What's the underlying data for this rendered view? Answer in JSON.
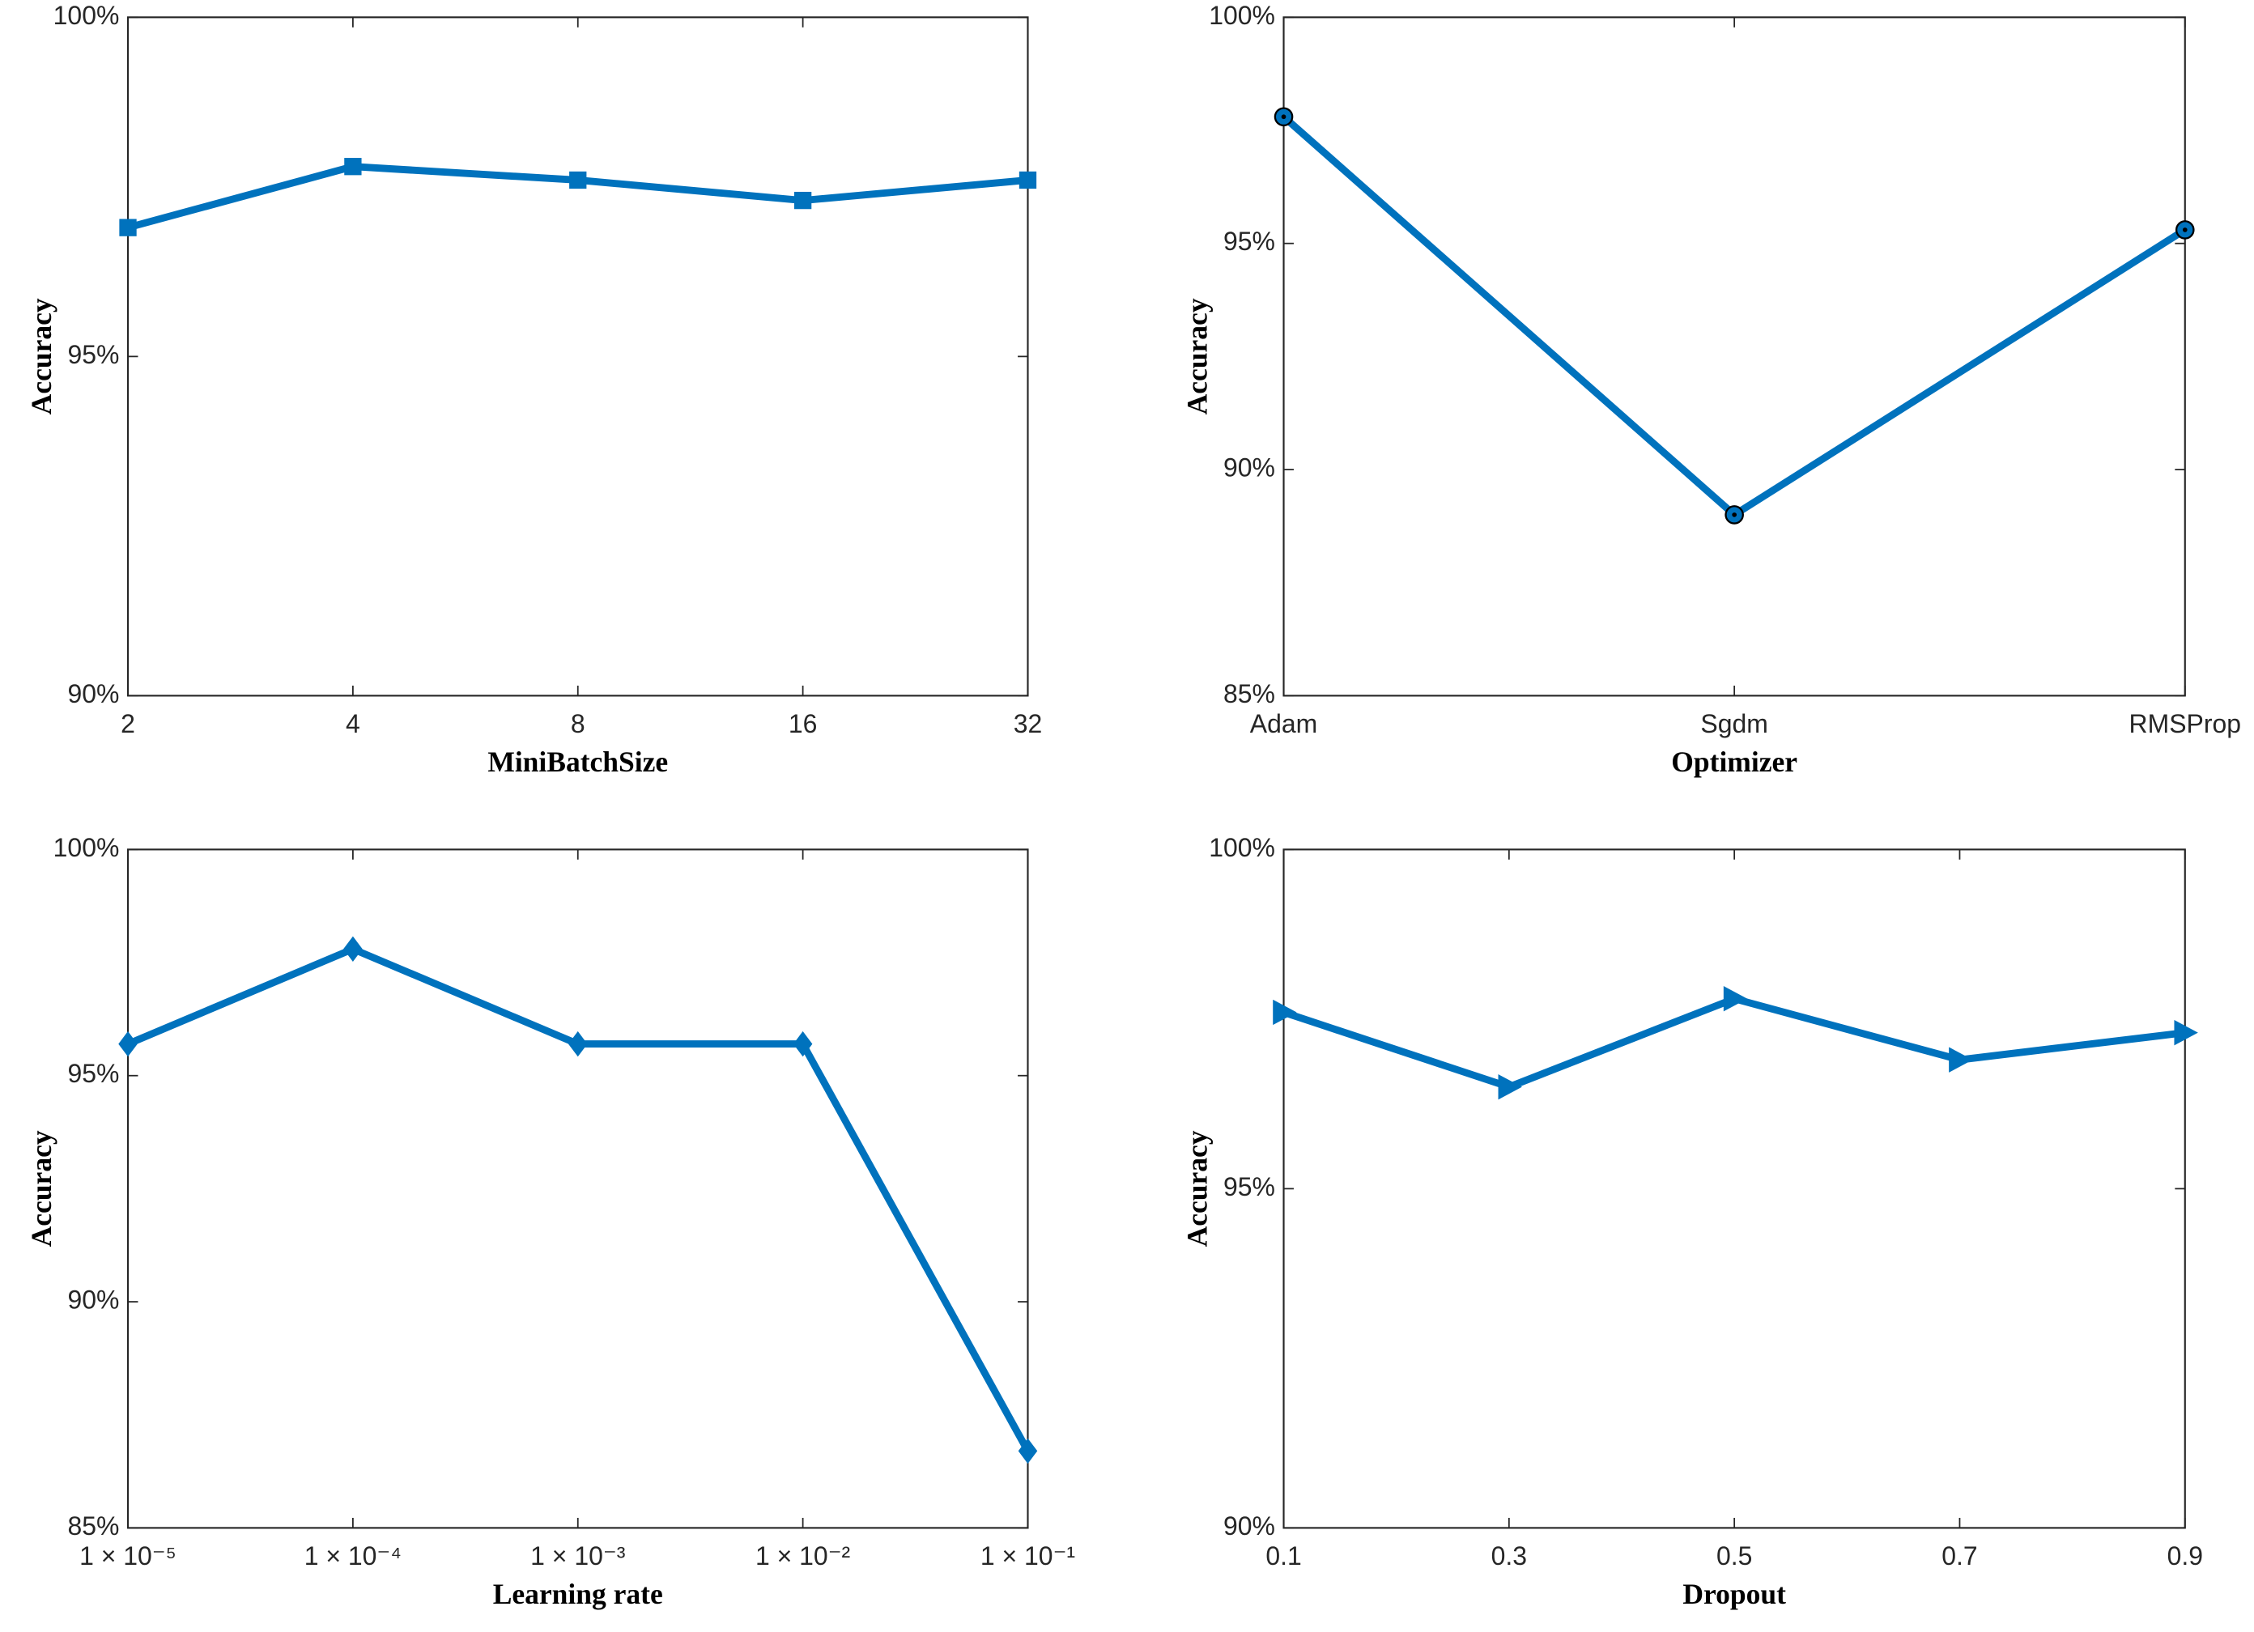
{
  "chart_data": [
    {
      "type": "line",
      "xlabel": "MiniBatchSize",
      "ylabel": "Accuracy",
      "categories": [
        "2",
        "4",
        "8",
        "16",
        "32"
      ],
      "series": [
        {
          "color": "#0072bd",
          "marker": "square",
          "values": [
            96.9,
            97.8,
            97.6,
            97.3,
            97.6
          ]
        }
      ],
      "ylim": [
        90,
        100
      ],
      "yticks": [
        {
          "value": 90,
          "label": "90%"
        },
        {
          "value": 95,
          "label": "95%"
        },
        {
          "value": 100,
          "label": "100%"
        }
      ],
      "grid": false
    },
    {
      "type": "line",
      "xlabel": "Optimizer",
      "ylabel": "Accuracy",
      "categories": [
        "Adam",
        "Sgdm",
        "RMSProp"
      ],
      "series": [
        {
          "color": "#0072bd",
          "marker": "circle",
          "values": [
            97.8,
            89.0,
            95.3
          ]
        }
      ],
      "ylim": [
        85,
        100
      ],
      "yticks": [
        {
          "value": 85,
          "label": "85%"
        },
        {
          "value": 90,
          "label": "90%"
        },
        {
          "value": 95,
          "label": "95%"
        },
        {
          "value": 100,
          "label": "100%"
        }
      ],
      "grid": false
    },
    {
      "type": "line",
      "xlabel": "Learning rate",
      "ylabel": "Accuracy",
      "categories": [
        "1 × 10⁻⁵",
        "1 × 10⁻⁴",
        "1 × 10⁻³",
        "1 × 10⁻²",
        "1 × 10⁻¹"
      ],
      "series": [
        {
          "color": "#0072bd",
          "marker": "diamond",
          "values": [
            95.7,
            97.8,
            95.7,
            95.7,
            86.7
          ]
        }
      ],
      "ylim": [
        85,
        100
      ],
      "yticks": [
        {
          "value": 85,
          "label": "85%"
        },
        {
          "value": 90,
          "label": "90%"
        },
        {
          "value": 95,
          "label": "95%"
        },
        {
          "value": 100,
          "label": "100%"
        }
      ],
      "grid": false
    },
    {
      "type": "line",
      "xlabel": "Dropout",
      "ylabel": "Accuracy",
      "x": [
        0.1,
        0.3,
        0.5,
        0.7,
        0.9
      ],
      "series": [
        {
          "color": "#0072bd",
          "marker": "triangle-right",
          "values": [
            97.6,
            96.5,
            97.8,
            96.9,
            97.3
          ]
        }
      ],
      "xlim": [
        0.1,
        0.9
      ],
      "xticks": [
        0.1,
        0.3,
        0.5,
        0.7,
        0.9
      ],
      "ylim": [
        90,
        100
      ],
      "yticks": [
        {
          "value": 90,
          "label": "90%"
        },
        {
          "value": 95,
          "label": "95%"
        },
        {
          "value": 100,
          "label": "100%"
        }
      ],
      "grid": false
    }
  ]
}
